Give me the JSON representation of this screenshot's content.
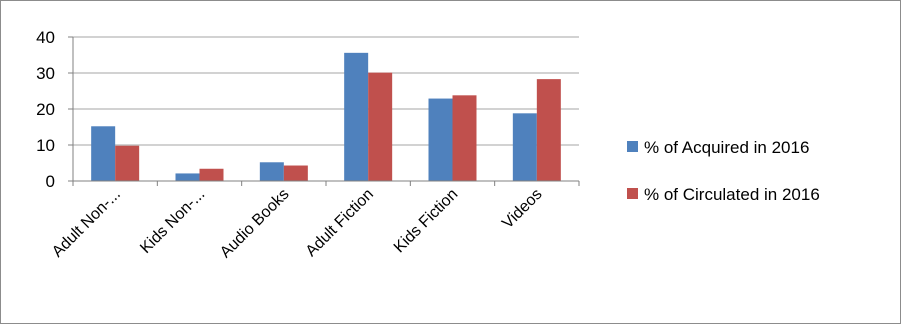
{
  "colors": {
    "series_1": "#4F81BD",
    "series_2": "#C0504D",
    "gridline": "#A6A6A6",
    "axis": "#808080"
  },
  "chart_data": {
    "type": "bar",
    "title": "",
    "xlabel": "",
    "ylabel": "",
    "ylim": [
      0,
      40
    ],
    "y_ticks": [
      "0",
      "10",
      "20",
      "30",
      "40"
    ],
    "grid": true,
    "legend_position": "right",
    "categories": [
      "Adult Non-...",
      "Kids Non-...",
      "Audio Books",
      "Adult Fiction",
      "Kids Fiction",
      "Videos"
    ],
    "series": [
      {
        "name": "% of Acquired in 2016",
        "values": [
          15.2,
          2.1,
          5.2,
          35.6,
          22.9,
          18.8
        ]
      },
      {
        "name": "% of Circulated in 2016",
        "values": [
          9.8,
          3.4,
          4.3,
          30.1,
          23.8,
          28.3
        ]
      }
    ]
  }
}
